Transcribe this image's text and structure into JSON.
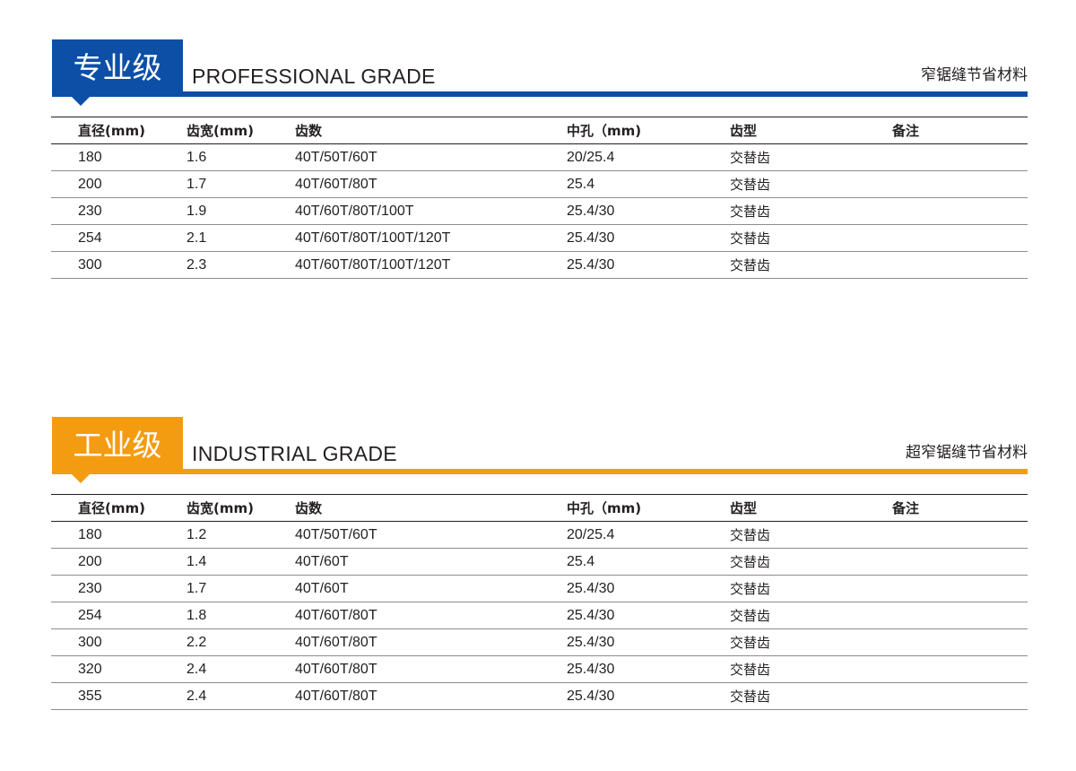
{
  "sections": [
    {
      "badge": "专业级",
      "title": "PROFESSIONAL GRADE",
      "tagline": "窄锯缝节省材料",
      "accent": "#0d4fa6",
      "headers": [
        "直径(mm)",
        "齿宽(mm)",
        "齿数",
        "中孔（mm)",
        "齿型",
        "备注"
      ],
      "rows": [
        [
          "180",
          "1.6",
          "40T/50T/60T",
          "20/25.4",
          "交替齿",
          ""
        ],
        [
          "200",
          "1.7",
          "40T/60T/80T",
          "25.4",
          "交替齿",
          ""
        ],
        [
          "230",
          "1.9",
          "40T/60T/80T/100T",
          "25.4/30",
          "交替齿",
          ""
        ],
        [
          "254",
          "2.1",
          "40T/60T/80T/100T/120T",
          "25.4/30",
          "交替齿",
          ""
        ],
        [
          "300",
          "2.3",
          "40T/60T/80T/100T/120T",
          "25.4/30",
          "交替齿",
          ""
        ]
      ]
    },
    {
      "badge": "工业级",
      "title": "INDUSTRIAL GRADE",
      "tagline": "超窄锯缝节省材料",
      "accent": "#f39c12",
      "headers": [
        "直径(mm)",
        "齿宽(mm)",
        "齿数",
        "中孔（mm)",
        "齿型",
        "备注"
      ],
      "rows": [
        [
          "180",
          "1.2",
          "40T/50T/60T",
          "20/25.4",
          "交替齿",
          ""
        ],
        [
          "200",
          "1.4",
          "40T/60T",
          "25.4",
          "交替齿",
          ""
        ],
        [
          "230",
          "1.7",
          "40T/60T",
          "25.4/30",
          "交替齿",
          ""
        ],
        [
          "254",
          "1.8",
          "40T/60T/80T",
          "25.4/30",
          "交替齿",
          ""
        ],
        [
          "300",
          "2.2",
          "40T/60T/80T",
          "25.4/30",
          "交替齿",
          ""
        ],
        [
          "320",
          "2.4",
          "40T/60T/80T",
          "25.4/30",
          "交替齿",
          ""
        ],
        [
          "355",
          "2.4",
          "40T/60T/80T",
          "25.4/30",
          "交替齿",
          ""
        ]
      ]
    }
  ]
}
